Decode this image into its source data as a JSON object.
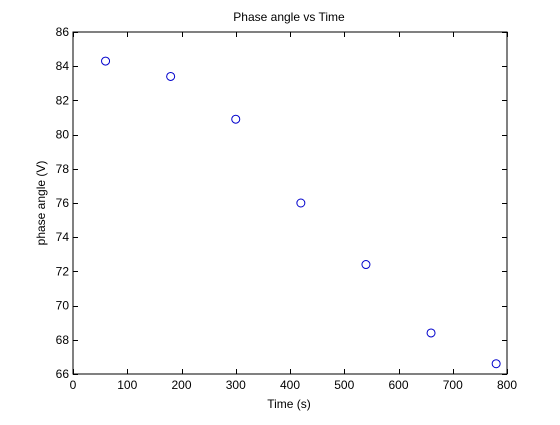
{
  "chart_data": {
    "type": "scatter",
    "title": "Phase angle vs Time",
    "xlabel": "Time (s)",
    "ylabel": "phase angle (V)",
    "xlim": [
      0,
      800
    ],
    "ylim": [
      66,
      86
    ],
    "xticks": [
      0,
      100,
      200,
      300,
      400,
      500,
      600,
      700,
      800
    ],
    "yticks": [
      66,
      68,
      70,
      72,
      74,
      76,
      78,
      80,
      82,
      84,
      86
    ],
    "grid": false,
    "marker": "circle-open",
    "colors": {
      "marker": "#0000cc",
      "axes": "#000000",
      "background": "#ffffff"
    },
    "series": [
      {
        "x": [
          60,
          180,
          300,
          420,
          540,
          660,
          780
        ],
        "y": [
          84.3,
          83.4,
          80.9,
          76.0,
          72.4,
          68.4,
          66.6
        ]
      }
    ]
  }
}
